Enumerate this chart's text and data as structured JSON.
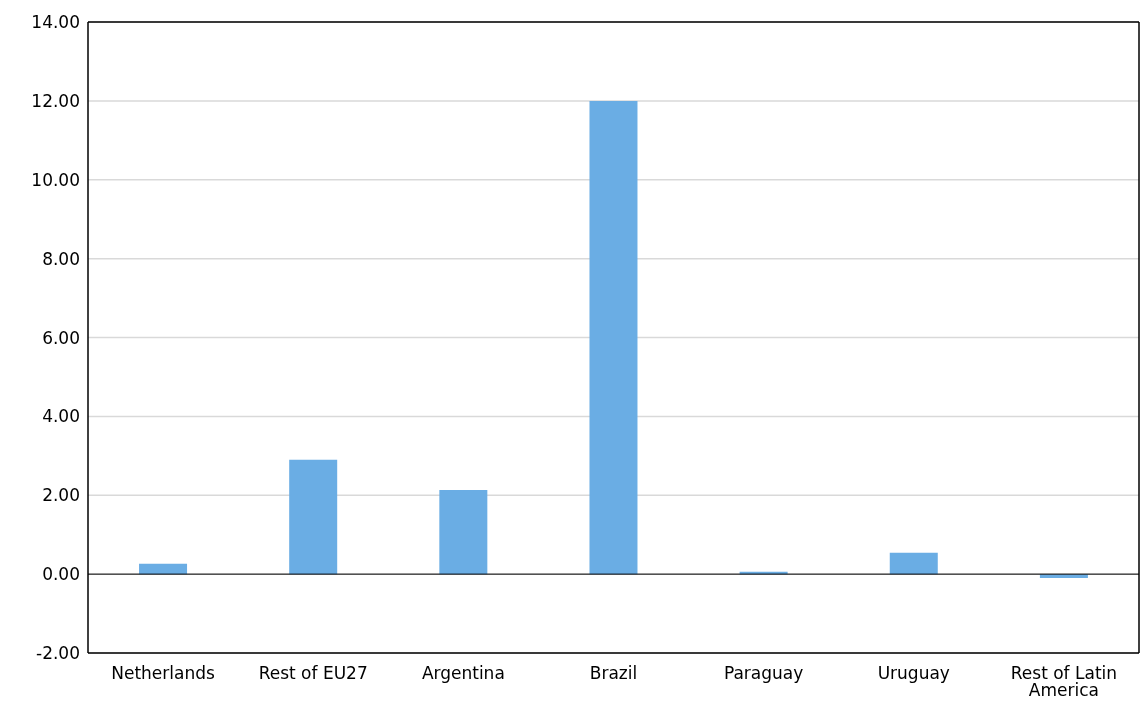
{
  "chart_data": {
    "type": "bar",
    "categories": [
      "Netherlands",
      "Rest of EU27",
      "Argentina",
      "Brazil",
      "Paraguay",
      "Uruguay",
      "Rest of Latin America"
    ],
    "values": [
      0.26,
      2.9,
      2.13,
      12.0,
      0.06,
      0.54,
      -0.1
    ],
    "color": "#6aade4",
    "ylim": [
      -2,
      14
    ],
    "yticks": [
      {
        "value": -2,
        "label": "-2.00"
      },
      {
        "value": 0,
        "label": "0.00"
      },
      {
        "value": 2,
        "label": "2.00"
      },
      {
        "value": 4,
        "label": "4.00"
      },
      {
        "value": 6,
        "label": "6.00"
      },
      {
        "value": 8,
        "label": "8.00"
      },
      {
        "value": 10,
        "label": "10.00"
      },
      {
        "value": 12,
        "label": "12.00"
      },
      {
        "value": 14,
        "label": "14.00"
      }
    ],
    "grid": "y"
  }
}
